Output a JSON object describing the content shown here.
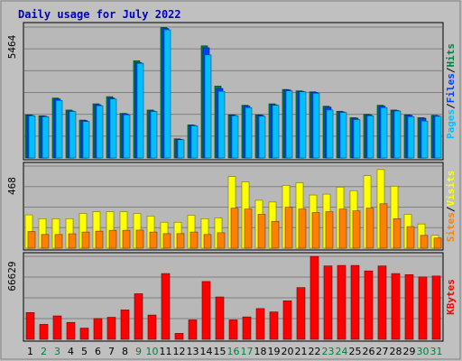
{
  "title": "Daily usage for July 2022",
  "colors": {
    "background": "#c0c0c0",
    "plot_bg": "#b8b8b8",
    "gridline": "#808080",
    "hits": "#008040",
    "files": "#0040ff",
    "pages": "#00c0ff",
    "visits": "#ffff00",
    "sites": "#ff8000",
    "kbytes": "#ff0000",
    "weekday_label": "#000000",
    "weekend_label": "#008040",
    "title": "#0000c0",
    "separator": "/"
  },
  "right_labels": {
    "top": [
      {
        "text": "Pages",
        "color": "#00c0ff"
      },
      {
        "text": "Files",
        "color": "#0040ff"
      },
      {
        "text": "Hits",
        "color": "#008040"
      }
    ],
    "middle": [
      {
        "text": "Sites",
        "color": "#ff8000"
      },
      {
        "text": "Visits",
        "color": "#ffff00"
      }
    ],
    "bottom": [
      {
        "text": "KBytes",
        "color": "#ff0000"
      }
    ]
  },
  "chart_data": [
    {
      "type": "bar",
      "panel": "hits-files-pages",
      "ymax_label": "5464",
      "ylim": [
        0,
        5464
      ],
      "categories": [
        "1",
        "2",
        "3",
        "4",
        "5",
        "6",
        "7",
        "8",
        "9",
        "10",
        "11",
        "12",
        "13",
        "14",
        "15",
        "16",
        "17",
        "18",
        "19",
        "20",
        "21",
        "22",
        "23",
        "24",
        "25",
        "26",
        "27",
        "28",
        "29",
        "30",
        "31"
      ],
      "weekend_days": [
        "2",
        "3",
        "9",
        "10",
        "16",
        "17",
        "23",
        "24",
        "30",
        "31"
      ],
      "series": [
        {
          "name": "Hits",
          "values": [
            1800,
            1760,
            2500,
            2000,
            1580,
            2260,
            2560,
            1860,
            4060,
            2000,
            5450,
            800,
            1380,
            4680,
            3000,
            1800,
            2200,
            1800,
            2260,
            2860,
            2800,
            2760,
            2160,
            1950,
            1680,
            1820,
            2200,
            2000,
            1800,
            1680,
            1780
          ]
        },
        {
          "name": "Files",
          "values": [
            1780,
            1740,
            2460,
            1960,
            1560,
            2220,
            2500,
            1840,
            3980,
            1960,
            5400,
            780,
            1360,
            4600,
            2900,
            1780,
            2160,
            1780,
            2220,
            2840,
            2780,
            2740,
            2120,
            1920,
            1660,
            1800,
            2160,
            1980,
            1780,
            1660,
            1760
          ]
        },
        {
          "name": "Pages",
          "values": [
            1760,
            1720,
            2400,
            1940,
            1520,
            2180,
            2460,
            1800,
            3950,
            1940,
            5350,
            760,
            1340,
            4300,
            2780,
            1760,
            2100,
            1740,
            2200,
            2800,
            2760,
            2700,
            2000,
            1900,
            1600,
            1760,
            2100,
            1960,
            1720,
            1540,
            1740
          ]
        }
      ]
    },
    {
      "type": "bar",
      "panel": "visits-sites",
      "ymax_label": "468",
      "ylim": [
        0,
        468
      ],
      "categories": [
        "1",
        "2",
        "3",
        "4",
        "5",
        "6",
        "7",
        "8",
        "9",
        "10",
        "11",
        "12",
        "13",
        "14",
        "15",
        "16",
        "17",
        "18",
        "19",
        "20",
        "21",
        "22",
        "23",
        "24",
        "25",
        "26",
        "27",
        "28",
        "29",
        "30",
        "31"
      ],
      "series": [
        {
          "name": "Visits",
          "values": [
            190,
            168,
            168,
            168,
            198,
            208,
            208,
            208,
            198,
            183,
            148,
            148,
            188,
            168,
            173,
            408,
            378,
            273,
            263,
            358,
            373,
            303,
            308,
            348,
            328,
            413,
            448,
            353,
            193,
            138,
            73
          ]
        },
        {
          "name": "Sites",
          "values": [
            95,
            78,
            78,
            82,
            92,
            97,
            102,
            102,
            103,
            92,
            83,
            83,
            92,
            78,
            88,
            228,
            223,
            193,
            153,
            233,
            223,
            203,
            208,
            223,
            213,
            228,
            253,
            168,
            123,
            73,
            58
          ]
        }
      ]
    },
    {
      "type": "bar",
      "panel": "kbytes",
      "ymax_label": "66629",
      "ylim": [
        0,
        66629
      ],
      "categories": [
        "1",
        "2",
        "3",
        "4",
        "5",
        "6",
        "7",
        "8",
        "9",
        "10",
        "11",
        "12",
        "13",
        "14",
        "15",
        "16",
        "17",
        "18",
        "19",
        "20",
        "21",
        "22",
        "23",
        "24",
        "25",
        "26",
        "27",
        "28",
        "29",
        "30",
        "31"
      ],
      "series": [
        {
          "name": "KBytes",
          "values": [
            21500,
            12000,
            18800,
            13600,
            9000,
            16700,
            17700,
            23600,
            36600,
            19500,
            52800,
            4800,
            15600,
            46400,
            34000,
            15600,
            18000,
            24700,
            22000,
            30900,
            41500,
            66500,
            58900,
            59300,
            59300,
            54900,
            58900,
            52800,
            51900,
            50100,
            50800
          ]
        }
      ]
    }
  ]
}
